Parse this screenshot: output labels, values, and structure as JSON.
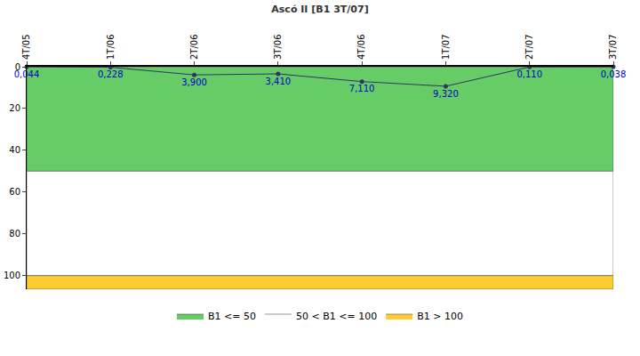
{
  "chart_data": {
    "type": "line",
    "title": "Ascó II [B1 3T/07]",
    "categories": [
      "4T/05",
      "1T/06",
      "2T/06",
      "3T/06",
      "4T/06",
      "1T/07",
      "2T/07",
      "3T/07"
    ],
    "values": [
      0.044,
      0.228,
      3.9,
      3.41,
      7.11,
      9.32,
      0.11,
      0.038
    ],
    "value_labels": [
      "0,044",
      "0,228",
      "3,900",
      "3,410",
      "7,110",
      "9,320",
      "0,110",
      "0,038"
    ],
    "color": "#333366",
    "marker": "circle",
    "data_labels": true,
    "ylim": [
      0,
      106.5
    ],
    "yticks": [
      0,
      20,
      40,
      60,
      80,
      100
    ],
    "grid": false,
    "legend": "bottom",
    "bands": [
      {
        "name": "B1 <= 50",
        "from": 0,
        "to": 50,
        "color": "#66cc66"
      },
      {
        "name": "50 < B1 <= 100",
        "from": 50,
        "to": 100,
        "color": "#ffffff"
      },
      {
        "name": "B1 > 100",
        "from": 100,
        "to": 106.5,
        "color": "#ffcc33"
      }
    ]
  }
}
